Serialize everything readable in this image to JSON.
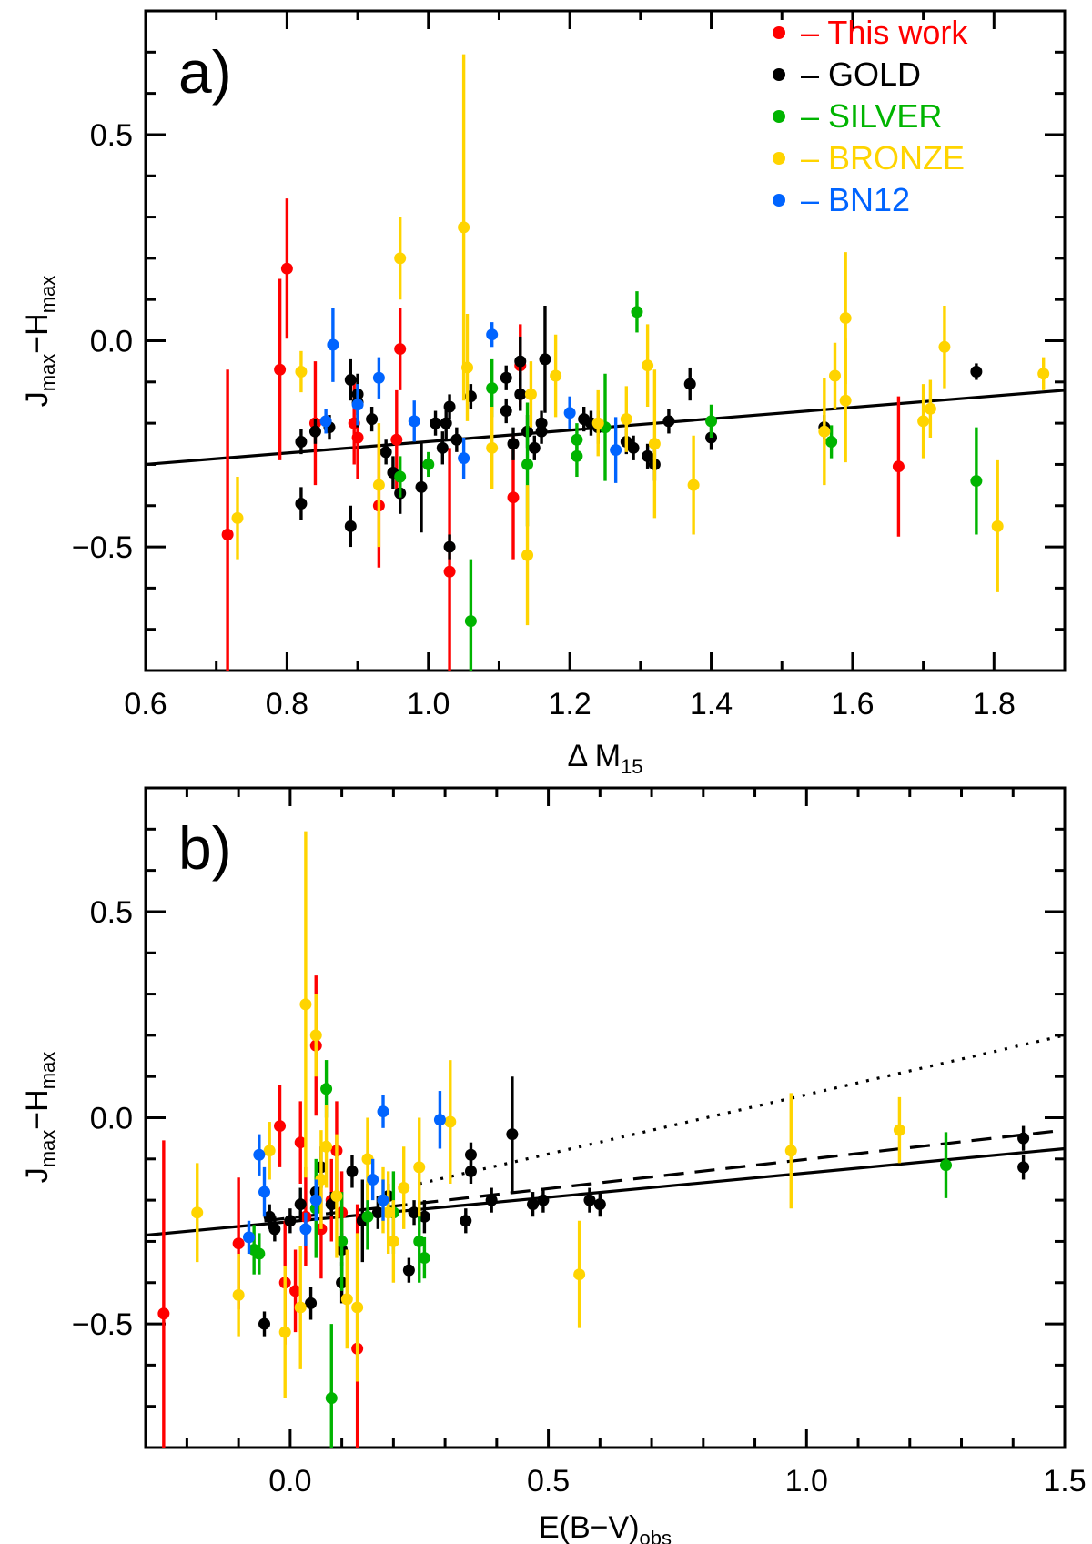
{
  "figure": {
    "y_axis_title_main": "J",
    "y_axis_title_sub1": "max",
    "y_axis_title_mid": "−H",
    "y_axis_title_sub2": "max"
  },
  "legend": [
    {
      "label": "– This work",
      "color": "#ff0000"
    },
    {
      "label": "– GOLD",
      "color": "#000000"
    },
    {
      "label": "– SILVER",
      "color": "#00b400"
    },
    {
      "label": "– BRONZE",
      "color": "#ffd400"
    },
    {
      "label": "– BN12",
      "color": "#0064ff"
    }
  ],
  "chart_data": [
    {
      "panel": "a)",
      "type": "scatter",
      "xlabel_main": "Δ M",
      "xlabel_sub": "15",
      "xlim": [
        0.6,
        1.9
      ],
      "ylim": [
        -0.8,
        0.8
      ],
      "xticks": [
        "0.6",
        "0.8",
        "1.0",
        "1.2",
        "1.4",
        "1.6",
        "1.8"
      ],
      "yticks": [
        "−0.5",
        "0.0",
        "0.5"
      ],
      "fit_line": {
        "style": "solid",
        "x": [
          0.6,
          1.9
        ],
        "y": [
          -0.3,
          -0.12
        ]
      },
      "series": [
        {
          "name": "This work",
          "color": "#ff0000",
          "points": [
            [
              0.716,
              -0.47,
              0.4
            ],
            [
              0.79,
              -0.07,
              0.22
            ],
            [
              0.8,
              0.175,
              0.17
            ],
            [
              0.84,
              -0.2,
              0.15
            ],
            [
              0.895,
              -0.2,
              0.1
            ],
            [
              0.9,
              -0.235,
              0.1
            ],
            [
              0.93,
              -0.4,
              0.15
            ],
            [
              0.955,
              -0.24,
              0.12
            ],
            [
              0.96,
              -0.02,
              0.1
            ],
            [
              1.03,
              -0.56,
              0.3
            ],
            [
              1.12,
              -0.38,
              0.15
            ],
            [
              1.13,
              -0.06,
              0.1
            ],
            [
              1.665,
              -0.305,
              0.17
            ]
          ]
        },
        {
          "name": "GOLD",
          "color": "#000000",
          "points": [
            [
              0.82,
              -0.245,
              0.03
            ],
            [
              0.82,
              -0.395,
              0.04
            ],
            [
              0.84,
              -0.22,
              0.03
            ],
            [
              0.86,
              -0.21,
              0.03
            ],
            [
              0.89,
              -0.095,
              0.05
            ],
            [
              0.89,
              -0.45,
              0.05
            ],
            [
              0.9,
              -0.15,
              0.06
            ],
            [
              0.9,
              -0.13,
              0.05
            ],
            [
              0.92,
              -0.19,
              0.03
            ],
            [
              0.94,
              -0.27,
              0.03
            ],
            [
              0.95,
              -0.32,
              0.04
            ],
            [
              0.96,
              -0.37,
              0.05
            ],
            [
              0.99,
              -0.355,
              0.11
            ],
            [
              1.01,
              -0.2,
              0.03
            ],
            [
              1.02,
              -0.26,
              0.04
            ],
            [
              1.025,
              -0.2,
              0.04
            ],
            [
              1.03,
              -0.5,
              0.03
            ],
            [
              1.03,
              -0.16,
              0.03
            ],
            [
              1.04,
              -0.24,
              0.03
            ],
            [
              1.06,
              -0.135,
              0.03
            ],
            [
              1.11,
              -0.09,
              0.03
            ],
            [
              1.11,
              -0.17,
              0.03
            ],
            [
              1.12,
              -0.25,
              0.04
            ],
            [
              1.13,
              -0.13,
              0.04
            ],
            [
              1.13,
              -0.05,
              0.06
            ],
            [
              1.14,
              -0.22,
              0.04
            ],
            [
              1.15,
              -0.26,
              0.03
            ],
            [
              1.16,
              -0.2,
              0.03
            ],
            [
              1.165,
              -0.045,
              0.13
            ],
            [
              1.16,
              -0.22,
              0.03
            ],
            [
              1.22,
              -0.19,
              0.03
            ],
            [
              1.23,
              -0.2,
              0.03
            ],
            [
              1.24,
              -0.21,
              0.04
            ],
            [
              1.28,
              -0.245,
              0.03
            ],
            [
              1.29,
              -0.26,
              0.03
            ],
            [
              1.31,
              -0.28,
              0.03
            ],
            [
              1.32,
              -0.3,
              0.04
            ],
            [
              1.34,
              -0.195,
              0.03
            ],
            [
              1.37,
              -0.105,
              0.04
            ],
            [
              1.4,
              -0.235,
              0.03
            ],
            [
              1.56,
              -0.21,
              0.03
            ],
            [
              1.775,
              -0.075,
              0.02
            ]
          ]
        },
        {
          "name": "SILVER",
          "color": "#00b400",
          "points": [
            [
              0.96,
              -0.33,
              0.05
            ],
            [
              1.0,
              -0.3,
              0.03
            ],
            [
              1.06,
              -0.68,
              0.15
            ],
            [
              1.09,
              -0.115,
              0.07
            ],
            [
              1.14,
              -0.3,
              0.15
            ],
            [
              1.21,
              -0.28,
              0.05
            ],
            [
              1.21,
              -0.24,
              0.04
            ],
            [
              1.25,
              -0.21,
              0.13
            ],
            [
              1.295,
              0.07,
              0.05
            ],
            [
              1.4,
              -0.195,
              0.04
            ],
            [
              1.57,
              -0.245,
              0.04
            ],
            [
              1.775,
              -0.34,
              0.13
            ]
          ]
        },
        {
          "name": "BRONZE",
          "color": "#ffd400",
          "points": [
            [
              0.73,
              -0.43,
              0.1
            ],
            [
              0.82,
              -0.075,
              0.05
            ],
            [
              0.93,
              -0.35,
              0.15
            ],
            [
              0.96,
              0.2,
              0.1
            ],
            [
              1.05,
              0.275,
              0.42
            ],
            [
              1.055,
              -0.065,
              0.13
            ],
            [
              1.09,
              -0.26,
              0.1
            ],
            [
              1.14,
              -0.52,
              0.17
            ],
            [
              1.145,
              -0.13,
              0.08
            ],
            [
              1.18,
              -0.085,
              0.1
            ],
            [
              1.24,
              -0.2,
              0.08
            ],
            [
              1.28,
              -0.19,
              0.08
            ],
            [
              1.31,
              -0.06,
              0.1
            ],
            [
              1.32,
              -0.25,
              0.18
            ],
            [
              1.375,
              -0.35,
              0.12
            ],
            [
              1.56,
              -0.22,
              0.13
            ],
            [
              1.575,
              -0.085,
              0.08
            ],
            [
              1.59,
              -0.145,
              0.15
            ],
            [
              1.59,
              0.055,
              0.16
            ],
            [
              1.7,
              -0.195,
              0.09
            ],
            [
              1.71,
              -0.165,
              0.07
            ],
            [
              1.73,
              -0.015,
              0.1
            ],
            [
              1.805,
              -0.45,
              0.16
            ],
            [
              1.87,
              -0.08,
              0.04
            ]
          ]
        },
        {
          "name": "BN12",
          "color": "#0064ff",
          "points": [
            [
              0.855,
              -0.195,
              0.03
            ],
            [
              0.865,
              -0.01,
              0.09
            ],
            [
              0.9,
              -0.155,
              0.05
            ],
            [
              0.93,
              -0.09,
              0.05
            ],
            [
              0.98,
              -0.195,
              0.05
            ],
            [
              1.05,
              -0.285,
              0.05
            ],
            [
              1.09,
              0.015,
              0.03
            ],
            [
              1.2,
              -0.175,
              0.04
            ],
            [
              1.265,
              -0.265,
              0.08
            ]
          ]
        }
      ]
    },
    {
      "panel": "b)",
      "type": "scatter",
      "xlabel_main": "E(B−V)",
      "xlabel_sub": "obs",
      "xlim": [
        -0.28,
        1.5
      ],
      "ylim": [
        -0.8,
        0.8
      ],
      "xticks": [
        "0.0",
        "0.5",
        "1.0",
        "1.5"
      ],
      "yticks": [
        "−0.5",
        "0.0",
        "0.5"
      ],
      "fit_lines": [
        {
          "style": "solid",
          "x": [
            -0.28,
            1.5
          ],
          "y": [
            -0.285,
            -0.075
          ]
        },
        {
          "style": "dashed",
          "x": [
            -0.05,
            1.5
          ],
          "y": [
            -0.25,
            -0.03
          ]
        },
        {
          "style": "dotted",
          "x": [
            0.25,
            1.5
          ],
          "y": [
            -0.16,
            0.2
          ]
        }
      ],
      "series": [
        {
          "name": "This work",
          "color": "#ff0000",
          "points": [
            [
              -0.245,
              -0.475,
              0.42
            ],
            [
              -0.1,
              -0.305,
              0.16
            ],
            [
              -0.02,
              -0.02,
              0.1
            ],
            [
              -0.01,
              -0.4,
              0.15
            ],
            [
              0.01,
              -0.42,
              0.1
            ],
            [
              0.02,
              -0.06,
              0.1
            ],
            [
              0.03,
              -0.24,
              0.12
            ],
            [
              0.05,
              0.175,
              0.17
            ],
            [
              0.06,
              -0.27,
              0.12
            ],
            [
              0.08,
              -0.2,
              0.1
            ],
            [
              0.09,
              -0.08,
              0.12
            ],
            [
              0.1,
              -0.23,
              0.1
            ],
            [
              0.13,
              -0.56,
              0.35
            ]
          ]
        },
        {
          "name": "GOLD",
          "color": "#000000",
          "points": [
            [
              -0.05,
              -0.5,
              0.03
            ],
            [
              -0.04,
              -0.24,
              0.03
            ],
            [
              -0.03,
              -0.27,
              0.03
            ],
            [
              0.0,
              -0.25,
              0.03
            ],
            [
              0.02,
              -0.21,
              0.04
            ],
            [
              0.04,
              -0.45,
              0.04
            ],
            [
              0.05,
              -0.18,
              0.04
            ],
            [
              0.06,
              -0.12,
              0.05
            ],
            [
              0.08,
              -0.21,
              0.03
            ],
            [
              0.1,
              -0.4,
              0.05
            ],
            [
              0.1,
              -0.32,
              0.04
            ],
            [
              0.12,
              -0.13,
              0.04
            ],
            [
              0.14,
              -0.25,
              0.1
            ],
            [
              0.17,
              -0.23,
              0.04
            ],
            [
              0.19,
              -0.19,
              0.03
            ],
            [
              0.23,
              -0.37,
              0.03
            ],
            [
              0.24,
              -0.23,
              0.03
            ],
            [
              0.26,
              -0.24,
              0.04
            ],
            [
              0.34,
              -0.25,
              0.03
            ],
            [
              0.35,
              -0.13,
              0.03
            ],
            [
              0.35,
              -0.09,
              0.03
            ],
            [
              0.39,
              -0.2,
              0.03
            ],
            [
              0.43,
              -0.04,
              0.14
            ],
            [
              0.47,
              -0.21,
              0.03
            ],
            [
              0.49,
              -0.2,
              0.03
            ],
            [
              0.58,
              -0.2,
              0.03
            ],
            [
              0.6,
              -0.21,
              0.03
            ],
            [
              1.42,
              -0.05,
              0.03
            ],
            [
              1.42,
              -0.12,
              0.03
            ]
          ]
        },
        {
          "name": "SILVER",
          "color": "#00b400",
          "points": [
            [
              -0.07,
              -0.32,
              0.06
            ],
            [
              -0.06,
              -0.33,
              0.05
            ],
            [
              0.05,
              -0.22,
              0.12
            ],
            [
              0.07,
              0.07,
              0.07
            ],
            [
              0.08,
              -0.68,
              0.18
            ],
            [
              0.1,
              -0.3,
              0.12
            ],
            [
              0.15,
              -0.24,
              0.08
            ],
            [
              0.2,
              -0.23,
              0.1
            ],
            [
              0.25,
              -0.3,
              0.1
            ],
            [
              0.26,
              -0.34,
              0.05
            ],
            [
              1.27,
              -0.115,
              0.08
            ]
          ]
        },
        {
          "name": "BRONZE",
          "color": "#ffd400",
          "points": [
            [
              -0.18,
              -0.23,
              0.12
            ],
            [
              -0.1,
              -0.43,
              0.1
            ],
            [
              -0.04,
              -0.08,
              0.07
            ],
            [
              -0.01,
              -0.52,
              0.16
            ],
            [
              0.02,
              -0.46,
              0.15
            ],
            [
              0.03,
              0.275,
              0.42
            ],
            [
              0.05,
              0.2,
              0.1
            ],
            [
              0.06,
              -0.15,
              0.12
            ],
            [
              0.07,
              -0.07,
              0.1
            ],
            [
              0.09,
              -0.19,
              0.15
            ],
            [
              0.11,
              -0.44,
              0.12
            ],
            [
              0.13,
              -0.46,
              0.18
            ],
            [
              0.15,
              -0.1,
              0.1
            ],
            [
              0.18,
              -0.2,
              0.08
            ],
            [
              0.19,
              -0.23,
              0.1
            ],
            [
              0.2,
              -0.3,
              0.1
            ],
            [
              0.22,
              -0.17,
              0.1
            ],
            [
              0.25,
              -0.12,
              0.12
            ],
            [
              0.31,
              -0.01,
              0.15
            ],
            [
              0.56,
              -0.38,
              0.13
            ],
            [
              0.97,
              -0.08,
              0.14
            ],
            [
              1.18,
              -0.03,
              0.08
            ]
          ]
        },
        {
          "name": "BN12",
          "color": "#0064ff",
          "points": [
            [
              -0.08,
              -0.29,
              0.04
            ],
            [
              -0.06,
              -0.09,
              0.05
            ],
            [
              -0.05,
              -0.18,
              0.06
            ],
            [
              0.03,
              -0.27,
              0.04
            ],
            [
              0.05,
              -0.2,
              0.05
            ],
            [
              0.16,
              -0.15,
              0.05
            ],
            [
              0.18,
              -0.2,
              0.05
            ],
            [
              0.18,
              0.015,
              0.04
            ],
            [
              0.29,
              -0.005,
              0.07
            ]
          ]
        }
      ]
    }
  ]
}
